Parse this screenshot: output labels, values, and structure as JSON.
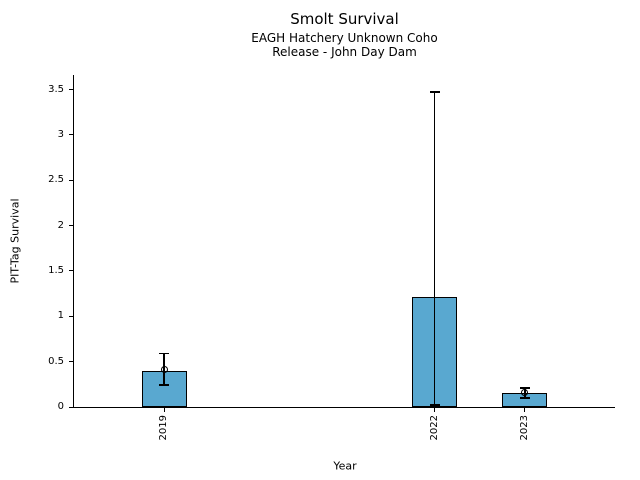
{
  "chart_data": {
    "type": "bar",
    "title": "Smolt Survival",
    "subtitle_line1": "EAGH Hatchery Unknown Coho",
    "subtitle_line2": "Release - John Day Dam",
    "xlabel": "Year",
    "ylabel": "PIT-Tag Survival",
    "categories": [
      "2019",
      "2022",
      "2023"
    ],
    "x_positions": [
      2019,
      2022,
      2023
    ],
    "values": [
      0.4,
      1.21,
      0.15
    ],
    "error_low": [
      0.24,
      0.02,
      0.1
    ],
    "error_high": [
      0.59,
      3.47,
      0.21
    ],
    "markers": [
      0.41,
      null,
      0.16
    ],
    "yticks": [
      0,
      0.5,
      1,
      1.5,
      2,
      2.5,
      3,
      3.5
    ],
    "ytick_labels": [
      "0",
      "0.5",
      "1",
      "1.5",
      "2",
      "2.5",
      "3",
      "3.5"
    ],
    "ylim": [
      0,
      3.66
    ],
    "xlim": [
      2018,
      2024
    ],
    "bar_width_years": 0.5,
    "bar_color": "#59A8D0",
    "bar_edge_color": "#000000",
    "axis_color": "#000000",
    "text_color": "#000000",
    "background_color": "#ffffff",
    "grid": false,
    "legend": null
  }
}
